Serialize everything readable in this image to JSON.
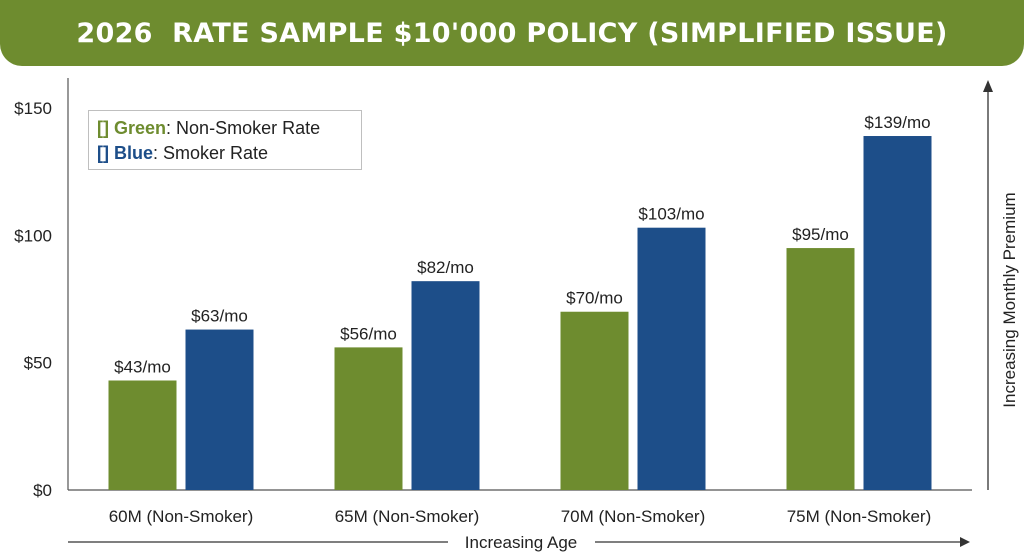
{
  "banner": {
    "title": "2026  RATE SAMPLE $10'000 POLICY (SIMPLIFIED ISSUE)"
  },
  "legend": {
    "items": [
      {
        "bracket": "[]",
        "color_word": "Green",
        "text": ": Non-Smoker Rate",
        "color": "#6e8c2f"
      },
      {
        "bracket": "[]",
        "color_word": "Blue",
        "text": ": Smoker Rate",
        "color": "#1d4e89"
      }
    ]
  },
  "chart_data": {
    "type": "bar",
    "categories": [
      "60M (Non-Smoker)",
      "65M (Non-Smoker)",
      "70M (Non-Smoker)",
      "75M (Non-Smoker)"
    ],
    "series": [
      {
        "name": "Non-Smoker Rate",
        "color": "#6e8c2f",
        "values": [
          43,
          56,
          70,
          95
        ],
        "labels": [
          "$43/mo",
          "$56/mo",
          "$70/mo",
          "$95/mo"
        ]
      },
      {
        "name": "Smoker Rate",
        "color": "#1d4e89",
        "values": [
          63,
          82,
          103,
          139
        ],
        "labels": [
          "$63/mo",
          "$82/mo",
          "$103/mo",
          "$139/mo"
        ]
      }
    ],
    "ylim": [
      0,
      150
    ],
    "yticks": [
      {
        "value": 0,
        "label": "$0"
      },
      {
        "value": 50,
        "label": "$50"
      },
      {
        "value": 100,
        "label": "$100"
      },
      {
        "value": 150,
        "label": "$150"
      }
    ],
    "xlabel": "Increasing Age",
    "ylabel": "Increasing Monthly Premium",
    "grid": false,
    "legend_position": "top-left"
  }
}
